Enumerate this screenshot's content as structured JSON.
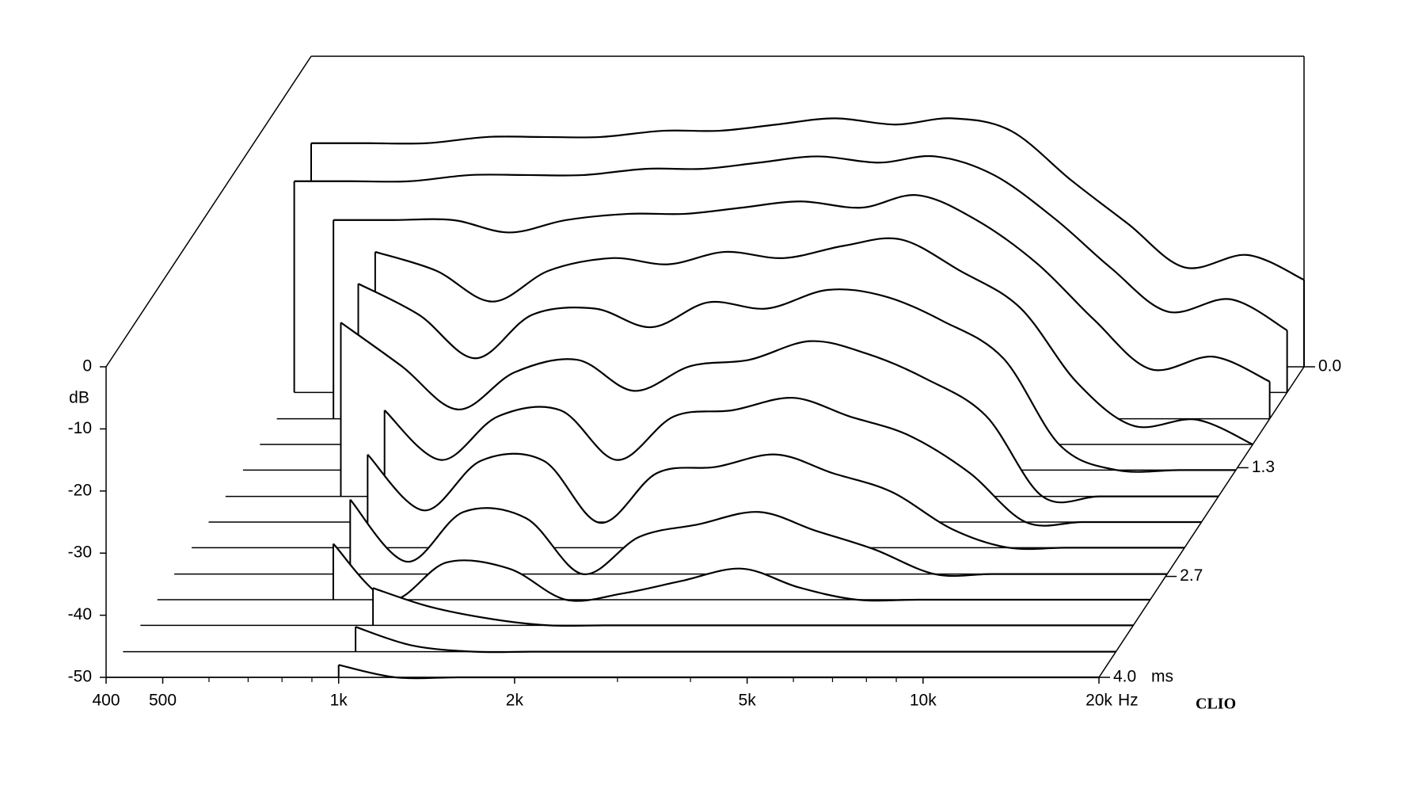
{
  "chart_data": {
    "type": "waterfall",
    "y_label": "dB",
    "x_unit": "Hz",
    "z_unit": "ms",
    "brand": "CLIO",
    "xlim": [
      400,
      20000
    ],
    "xticks": [
      400,
      500,
      {
        "value": 1000,
        "label": "1k"
      },
      {
        "value": 2000,
        "label": "2k"
      },
      {
        "value": 5000,
        "label": "5k"
      },
      {
        "value": 10000,
        "label": "10k"
      },
      {
        "value": 20000,
        "label": "20k"
      }
    ],
    "xminor": [
      600,
      700,
      800,
      900,
      3000,
      4000,
      6000,
      7000,
      8000,
      9000
    ],
    "log_x": true,
    "ylim": [
      -50,
      0
    ],
    "yticks": [
      0,
      -10,
      -20,
      -30,
      -40,
      -50
    ],
    "zlim": [
      0,
      4
    ],
    "zticks": [
      {
        "value": 0,
        "label": "0.0"
      },
      1.3,
      2.7,
      {
        "value": 4,
        "label": "4.0"
      }
    ],
    "x": [
      400,
      500,
      630,
      800,
      1000,
      1250,
      1600,
      2000,
      2500,
      3150,
      4000,
      5000,
      6300,
      8000,
      10000,
      12500,
      16000,
      20000
    ],
    "z": [
      0,
      0.33,
      0.67,
      1.0,
      1.33,
      1.67,
      2.0,
      2.33,
      2.67,
      3.0,
      3.33,
      3.67,
      4.0
    ],
    "color": "#000000",
    "series": [
      {
        "values": [
          -14,
          -14,
          -14,
          -13,
          -13,
          -13,
          -12,
          -12,
          -11,
          -10,
          -11,
          -10,
          -12,
          -20,
          -27,
          -34,
          -32,
          -36
        ]
      },
      {
        "values": [
          -16,
          -16,
          -16,
          -15,
          -15,
          -15,
          -14,
          -14,
          -13,
          -12,
          -13,
          -12,
          -15,
          -22,
          -30,
          -37,
          -35,
          -40
        ]
      },
      {
        "values": [
          null,
          -18,
          -18,
          -18,
          -20,
          -18,
          -17,
          -17,
          -16,
          -15,
          -16,
          -14,
          -18,
          -25,
          -34,
          -42,
          -40,
          -44
        ]
      },
      {
        "values": [
          null,
          null,
          -19,
          -22,
          -27,
          -22,
          -20,
          -21,
          -19,
          -20,
          -18,
          -17,
          -22,
          -28,
          -40,
          -47,
          -46,
          -50
        ]
      },
      {
        "values": [
          null,
          null,
          -20,
          -25,
          -32,
          -25,
          -24,
          -27,
          -23,
          -24,
          -21,
          -22,
          -26,
          -32,
          -46,
          -50,
          -50,
          -50
        ]
      },
      {
        "values": [
          null,
          null,
          -22,
          -29,
          -36,
          -30,
          -28,
          -33,
          -29,
          -28,
          -25,
          -27,
          -31,
          -37,
          -50,
          -50,
          -50,
          -50
        ]
      },
      {
        "values": [
          null,
          null,
          null,
          -32,
          -40,
          -33,
          -32,
          -40,
          -33,
          -32,
          -30,
          -33,
          -36,
          -42,
          -50,
          -50,
          -50,
          -50
        ]
      },
      {
        "values": [
          null,
          null,
          null,
          -35,
          -44,
          -36,
          -36,
          -46,
          -38,
          -37,
          -35,
          -38,
          -41,
          -47,
          -50,
          -50,
          -50,
          -50
        ]
      },
      {
        "values": [
          null,
          null,
          null,
          -38,
          -48,
          -40,
          -41,
          -50,
          -44,
          -42,
          -40,
          -43,
          -46,
          -50,
          -50,
          -50,
          -50,
          -50
        ]
      },
      {
        "values": [
          null,
          null,
          null,
          -41,
          -50,
          -44,
          -45,
          -50,
          -49,
          -47,
          -45,
          -48,
          -50,
          -50,
          -50,
          -50,
          -50,
          -50
        ]
      },
      {
        "values": [
          null,
          null,
          null,
          null,
          -44,
          -47,
          -49,
          -50,
          -50,
          -50,
          -50,
          -50,
          -50,
          -50,
          -50,
          -50,
          -50,
          -50
        ]
      },
      {
        "values": [
          null,
          null,
          null,
          null,
          -46,
          -49,
          -50,
          -50,
          -50,
          -50,
          -50,
          -50,
          -50,
          -50,
          -50,
          -50,
          -50,
          -50
        ]
      },
      {
        "values": [
          null,
          null,
          null,
          null,
          -48,
          -50,
          -50,
          -50,
          -50,
          -50,
          -50,
          -50,
          -50,
          -50,
          -50,
          -50,
          -50,
          -50
        ]
      }
    ]
  }
}
